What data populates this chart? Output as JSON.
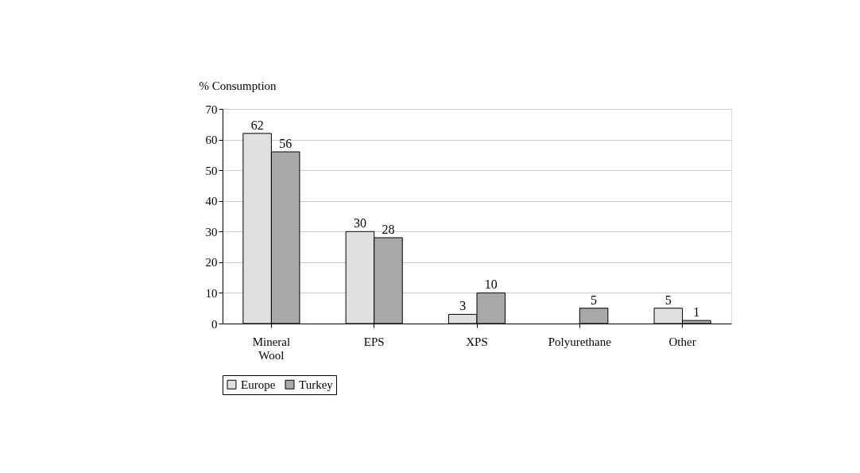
{
  "chart_data": {
    "type": "bar",
    "ylabel": "% Consumption",
    "categories": [
      "Mineral Wool",
      "EPS",
      "XPS",
      "Polyurethane",
      "Other"
    ],
    "series": [
      {
        "name": "Europe",
        "color": "#e0e0e0",
        "values": [
          62,
          30,
          3,
          null,
          5
        ]
      },
      {
        "name": "Turkey",
        "color": "#a8a8a8",
        "values": [
          56,
          28,
          10,
          5,
          1
        ]
      }
    ],
    "ylim": [
      0,
      70
    ],
    "yticks": [
      0,
      10,
      20,
      30,
      40,
      50,
      60,
      70
    ],
    "grid": "y",
    "legend": "bottom",
    "data_labels": true
  }
}
